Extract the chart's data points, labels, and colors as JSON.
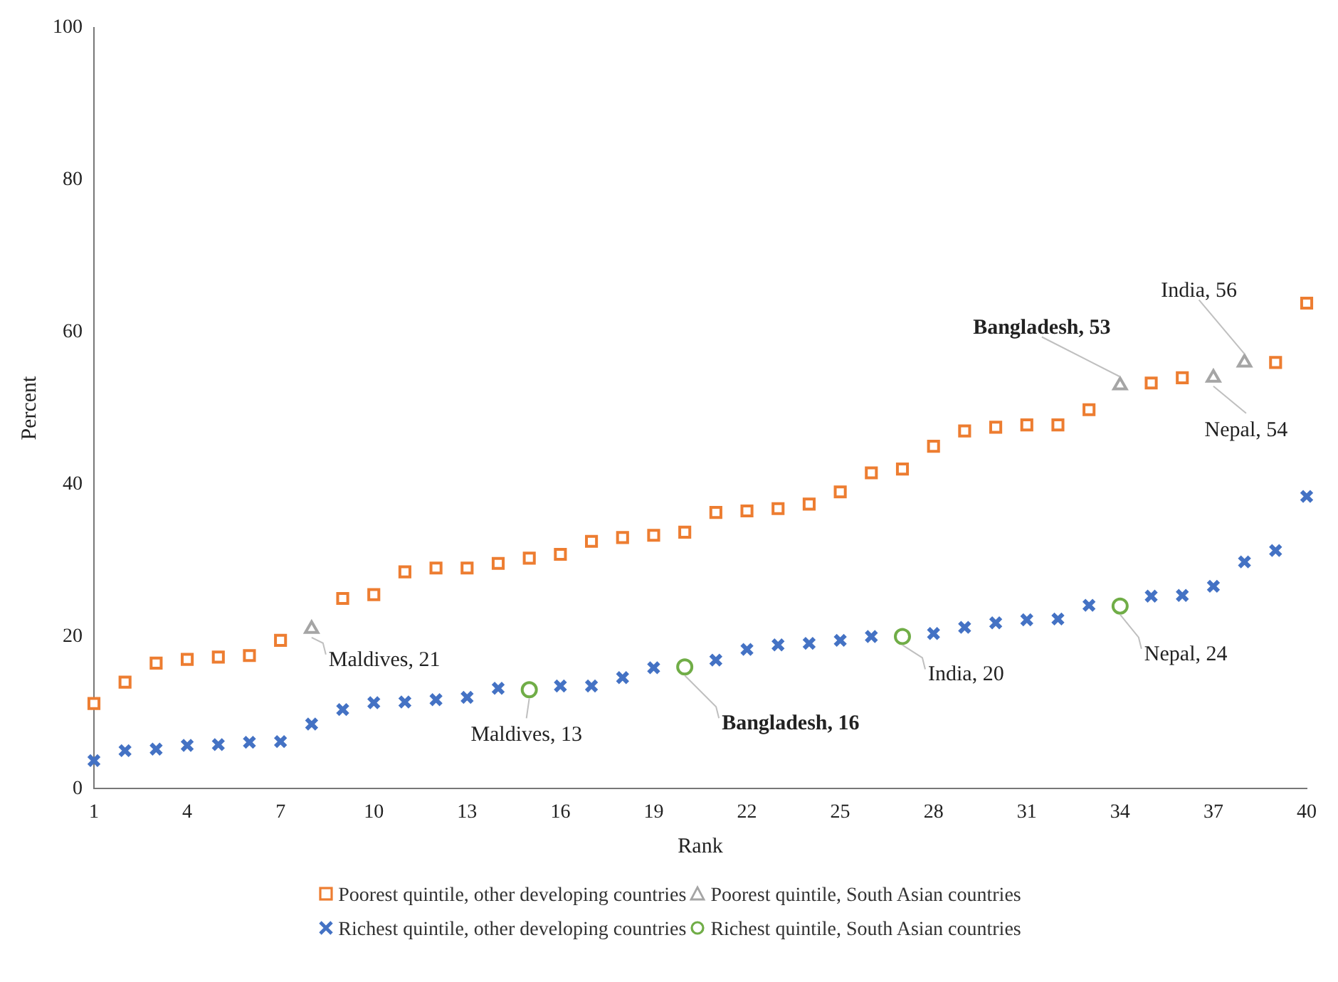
{
  "chart_data": {
    "type": "scatter",
    "xlabel": "Rank",
    "ylabel": "Percent",
    "xlim": [
      1,
      40
    ],
    "xticks": [
      1,
      4,
      7,
      10,
      13,
      16,
      19,
      22,
      25,
      28,
      31,
      34,
      37,
      40
    ],
    "ylim": [
      0,
      100
    ],
    "yticks": [
      0,
      20,
      40,
      60,
      80,
      100
    ],
    "grid": false,
    "legend": "bottom",
    "series": [
      {
        "name": "Poorest quintile, other developing countries",
        "color": "#ed7d31",
        "marker": "square",
        "x": [
          1,
          2,
          3,
          4,
          5,
          6,
          7,
          9,
          10,
          11,
          12,
          13,
          14,
          15,
          16,
          17,
          18,
          19,
          20,
          21,
          22,
          23,
          24,
          25,
          26,
          27,
          28,
          29,
          30,
          31,
          32,
          33,
          35,
          36,
          39,
          40
        ],
        "values": [
          11.2,
          14,
          16.5,
          17,
          17.3,
          17.5,
          19.5,
          25,
          25.5,
          28.5,
          29,
          29,
          29.6,
          30.3,
          30.8,
          32.5,
          33,
          33.3,
          33.7,
          36.3,
          36.5,
          36.8,
          37.4,
          39,
          41.5,
          42,
          45,
          47,
          47.5,
          47.8,
          47.8,
          49.8,
          53.3,
          54,
          56,
          63.8
        ]
      },
      {
        "name": "Poorest quintile, South Asian countries",
        "color": "#a5a5a5",
        "marker": "triangle",
        "x": [
          8,
          34,
          37,
          38
        ],
        "values": [
          21,
          53,
          54,
          56
        ]
      },
      {
        "name": "Richest quintile, other developing countries",
        "color": "#4472c4",
        "marker": "cross",
        "x": [
          1,
          2,
          3,
          4,
          5,
          6,
          7,
          8,
          9,
          10,
          11,
          12,
          13,
          14,
          16,
          17,
          18,
          19,
          21,
          22,
          23,
          24,
          25,
          26,
          28,
          29,
          30,
          31,
          32,
          33,
          35,
          36,
          37,
          38,
          39,
          40
        ],
        "values": [
          3.7,
          5,
          5.2,
          5.7,
          5.8,
          6.1,
          6.2,
          8.5,
          10.4,
          11.3,
          11.4,
          11.7,
          12,
          13.2,
          13.5,
          13.5,
          14.6,
          15.9,
          16.9,
          18.3,
          18.9,
          19.1,
          19.5,
          20,
          20.4,
          21.2,
          21.8,
          22.2,
          22.3,
          24.1,
          25.3,
          25.4,
          26.6,
          29.8,
          31.3,
          38.4
        ]
      },
      {
        "name": "Richest quintile, South Asian countries",
        "color": "#70ad47",
        "marker": "circle",
        "x": [
          15,
          20,
          27,
          34
        ],
        "values": [
          13,
          16,
          20,
          24
        ]
      }
    ],
    "annotations": [
      {
        "text": "Maldives, 21",
        "x": 8,
        "y": 21
      },
      {
        "text": "Maldives, 13",
        "x": 15,
        "y": 13
      },
      {
        "text": "Bangladesh, 16",
        "x": 20,
        "y": 16
      },
      {
        "text": "India, 20",
        "x": 27,
        "y": 20
      },
      {
        "text": "Nepal, 24",
        "x": 34,
        "y": 24
      },
      {
        "text": "Bangladesh, 53",
        "x": 34,
        "y": 53
      },
      {
        "text": "Nepal, 54",
        "x": 37,
        "y": 54
      },
      {
        "text": "India, 56",
        "x": 38,
        "y": 56
      }
    ]
  }
}
